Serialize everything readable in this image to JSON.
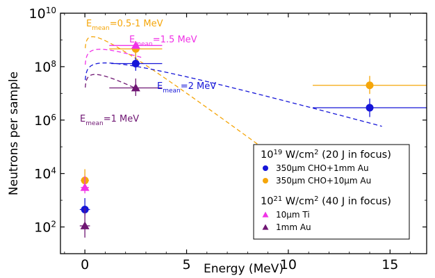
{
  "chart_data": {
    "type": "scatter",
    "xlabel": "Energy (MeV)",
    "ylabel": "Neutrons per sample",
    "xlim": [
      -1.2,
      16.8
    ],
    "ylim_log10": [
      1.0,
      10.0
    ],
    "y_scale": "log",
    "x_ticks": [
      {
        "value": 0,
        "label": "0"
      },
      {
        "value": 5,
        "label": "5"
      },
      {
        "value": 10,
        "label": "10"
      },
      {
        "value": 15,
        "label": "15"
      }
    ],
    "y_ticks": [
      {
        "exp": 2,
        "base": "10",
        "sup": "2"
      },
      {
        "exp": 4,
        "base": "10",
        "sup": "4"
      },
      {
        "exp": 6,
        "base": "10",
        "sup": "6"
      },
      {
        "exp": 8,
        "base": "10",
        "sup": "8"
      },
      {
        "exp": 10,
        "base": "10",
        "sup": "10"
      }
    ],
    "colors": {
      "blue": "#1515d8",
      "orange": "#f5a60a",
      "magenta": "#f032e6",
      "purple": "#6f1673"
    },
    "series": [
      {
        "name": "350µm CHO+1mm Au",
        "marker": "circle",
        "color": "#1515d8",
        "points": [
          {
            "x": 0.0,
            "y": 450,
            "xerr": [
              0.25,
              0.25
            ],
            "yerr": [
              180,
              750
            ]
          },
          {
            "x": 2.5,
            "y": 130000000.0,
            "xerr": [
              1.2,
              1.3
            ],
            "yerr": [
              60000000.0,
              200000000.0
            ]
          },
          {
            "x": 14.0,
            "y": 2900000.0,
            "xerr": [
              2.8,
              2.8
            ],
            "yerr": [
              1600000.0,
              3500000.0
            ]
          }
        ]
      },
      {
        "name": "350µm CHO+10µm Au",
        "marker": "circle",
        "color": "#f5a60a",
        "points": [
          {
            "x": 0.0,
            "y": 5500,
            "xerr": [
              0.2,
              0.2
            ],
            "yerr": [
              2000,
              9000
            ]
          },
          {
            "x": 2.5,
            "y": 460000000.0,
            "xerr": [
              1.3,
              1.3
            ],
            "yerr": [
              240000000.0,
              450000000.0
            ]
          },
          {
            "x": 14.0,
            "y": 20000000.0,
            "xerr": [
              2.8,
              2.8
            ],
            "yerr": [
              10500000.0,
              25000000.0
            ]
          }
        ]
      },
      {
        "name": "10µm Ti",
        "marker": "triangle",
        "color": "#f032e6",
        "points": [
          {
            "x": 0.0,
            "y": 3000,
            "xerr": [
              0.2,
              0.2
            ],
            "yerr": [
              1200,
              5000
            ]
          },
          {
            "x": 2.5,
            "y": 620000000.0,
            "xerr": [
              1.3,
              1.3
            ],
            "yerr": [
              150000000.0,
              250000000.0
            ]
          }
        ]
      },
      {
        "name": "1mm Au",
        "marker": "triangle",
        "color": "#6f1673",
        "points": [
          {
            "x": 0.0,
            "y": 110,
            "xerr": [
              0.25,
              0.25
            ],
            "yerr": [
              70,
              400
            ]
          },
          {
            "x": 2.5,
            "y": 16000000.0,
            "xerr": [
              1.3,
              1.3
            ],
            "yerr": [
              8000000.0,
              20000000.0
            ]
          }
        ]
      }
    ],
    "spectra": [
      {
        "label_pre": "E",
        "label_sub": "mean",
        "label_post": "=0.5-1 MeV",
        "color": "#f5a60a",
        "T": 0.75,
        "scale": 3080000000.0,
        "x_from": 0.02,
        "x_to": 14.5
      },
      {
        "label_pre": "E",
        "label_sub": "mean",
        "label_post": "=1.5 MeV",
        "color": "#f032e6",
        "T": 1.5,
        "scale": 1040000000.0,
        "x_from": 0.02,
        "x_to": 2.8
      },
      {
        "label_pre": "E",
        "label_sub": "mean",
        "label_post": "=2 MeV",
        "color": "#1515d8",
        "T": 2.0,
        "scale": 321000000.0,
        "x_from": 0.02,
        "x_to": 14.6
      },
      {
        "label_pre": "E",
        "label_sub": "mean",
        "label_post": "=1 MeV",
        "color": "#6f1673",
        "T": 1.0,
        "scale": 119000000.0,
        "x_from": 0.02,
        "x_to": 2.5
      }
    ],
    "legend": {
      "location": "bottom-right",
      "groups": [
        {
          "heading_pre": "10",
          "heading_sup": "19",
          "heading_mid": " W/cm",
          "heading_sup2": "2",
          "heading_post": " (20 J in focus)",
          "entries": [
            {
              "label": "350µm CHO+1mm Au",
              "marker": "circle",
              "color": "#1515d8"
            },
            {
              "label": "350µm CHO+10µm Au",
              "marker": "circle",
              "color": "#f5a60a"
            }
          ]
        },
        {
          "heading_pre": "10",
          "heading_sup": "21",
          "heading_mid": " W/cm",
          "heading_sup2": "2",
          "heading_post": " (40 J in focus)",
          "entries": [
            {
              "label": "10µm Ti",
              "marker": "triangle",
              "color": "#f032e6"
            },
            {
              "label": "1mm Au",
              "marker": "triangle",
              "color": "#6f1673"
            }
          ]
        }
      ]
    },
    "grid": false
  }
}
